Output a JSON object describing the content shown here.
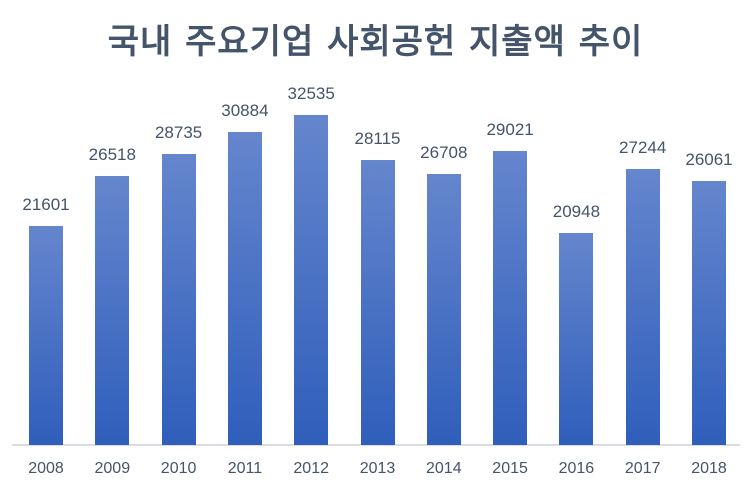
{
  "chart_data": {
    "type": "bar",
    "title": "국내 주요기업 사회공헌 지출액 추이",
    "xlabel": "",
    "ylabel": "",
    "categories": [
      "2008",
      "2009",
      "2010",
      "2011",
      "2012",
      "2013",
      "2014",
      "2015",
      "2016",
      "2017",
      "2018"
    ],
    "values": [
      21601,
      26518,
      28735,
      30884,
      32535,
      28115,
      26708,
      29021,
      20948,
      27244,
      26061
    ],
    "ylim": [
      0,
      33000
    ],
    "grid": false,
    "legend": null,
    "data_labels": true,
    "colors": {
      "bar_top": "#6586cd",
      "bar_bottom": "#2f5ebb",
      "text": "#44546a",
      "axis": "#d9dde3"
    }
  }
}
